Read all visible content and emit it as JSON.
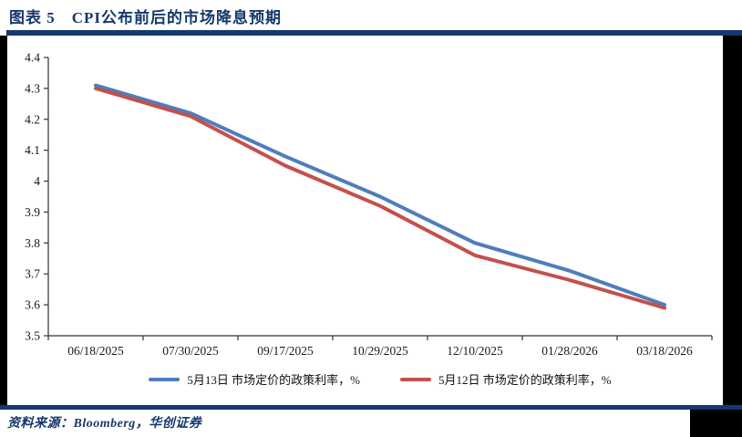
{
  "page": {
    "figure_label": "图表 5",
    "figure_title": "CPI公布前后的市场降息预期",
    "source_text": "资料来源：Bloomberg，华创证券"
  },
  "colors": {
    "navy_accent": "#16386C",
    "series_blue": "#4E7DBE",
    "series_red": "#C4504C",
    "axis": "#333333",
    "margin_black": "#000000"
  },
  "chart_data": {
    "type": "line",
    "title": "CPI公布前后的市场降息预期",
    "categories": [
      "06/18/2025",
      "07/30/2025",
      "09/17/2025",
      "10/29/2025",
      "12/10/2025",
      "01/28/2026",
      "03/18/2026"
    ],
    "series": [
      {
        "name": "5月13日 市场定价的政策利率，%",
        "color": "#4E7DBE",
        "values": [
          4.31,
          4.22,
          4.08,
          3.95,
          3.8,
          3.71,
          3.6
        ]
      },
      {
        "name": "5月12日 市场定价的政策利率，%",
        "color": "#C4504C",
        "values": [
          4.3,
          4.21,
          4.05,
          3.92,
          3.76,
          3.68,
          3.59
        ]
      }
    ],
    "xlabel": "",
    "ylabel": "",
    "ylim": [
      3.5,
      4.4
    ],
    "ytick_step": 0.1,
    "ytick_labels": [
      "4.4",
      "4.3",
      "4.2",
      "4.1",
      "4",
      "3.9",
      "3.8",
      "3.7",
      "3.6",
      "3.5"
    ],
    "grid": false,
    "legend_position": "bottom"
  }
}
